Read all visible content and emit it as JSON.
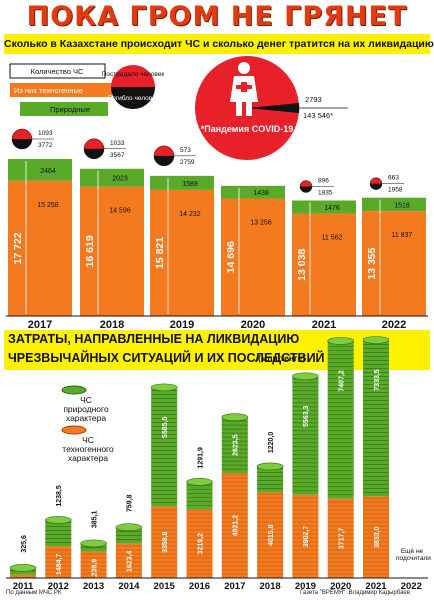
{
  "header": {
    "title": "ПОКА ГРОМ НЕ ГРЯНЕТ",
    "subtitle": "Сколько в Казахстане происходит ЧС и сколько денег тратится на их ликвидацию"
  },
  "legend_top": {
    "total": "Количество ЧС",
    "technogenic": "Из них техногенные",
    "natural": "Природные",
    "victims": "Пострадало человек",
    "deaths": "Погибло человек"
  },
  "covid": {
    "label": "*Пандемия COVID-19",
    "deaths": "2793",
    "victims": "143 546*"
  },
  "section2": {
    "title_line1": "ЗАТРАТЫ, НАПРАВЛЕННЫЕ НА ЛИКВИДАЦИЮ",
    "title_line2": "ЧРЕЗВЫЧАЙНЫХ СИТУАЦИЙ И ИХ ПОСЛЕДСТВИЙ",
    "unit": "(млн тенге)",
    "legend_natural": "ЧС природного характера",
    "legend_technogenic": "ЧС техногенного характера",
    "note_2022": "Ещё не подсчитали"
  },
  "credits": {
    "source": "По данным МЧС РК",
    "author": "Газета \"ВРЕМЯ\". Владимир Кадырбаев"
  },
  "colors": {
    "orange": "#f47a20",
    "green": "#5aaa2a",
    "red": "#e8202a",
    "black": "#111111",
    "yellow": "#fff200"
  },
  "chart_data": [
    {
      "type": "bar",
      "categories": [
        "2017",
        "2018",
        "2019",
        "2020",
        "2021",
        "2022"
      ],
      "series": [
        {
          "name": "Из них техногенные",
          "values": [
            15258,
            14596,
            14232,
            13258,
            11562,
            11837
          ]
        },
        {
          "name": "Природные",
          "values": [
            2464,
            2023,
            1589,
            1438,
            1476,
            1518
          ]
        }
      ],
      "totals": [
        17722,
        16619,
        15821,
        14696,
        13038,
        13355
      ],
      "totals_labels": [
        "17 722",
        "16 619",
        "15 821",
        "14 696",
        "13 038",
        "13 355"
      ],
      "tech_labels": [
        "15 258",
        "14 596",
        "14 232",
        "13 258",
        "11 562",
        "11 837"
      ],
      "natural_labels": [
        "2464",
        "2023",
        "1589",
        "1438",
        "1476",
        "1518"
      ],
      "victims": [
        "3772",
        "3567",
        "2759",
        "",
        "1835",
        "1958"
      ],
      "deaths": [
        "1093",
        "1033",
        "573",
        "",
        "896",
        "663"
      ]
    },
    {
      "type": "bar",
      "categories": [
        "2011",
        "2012",
        "2013",
        "2014",
        "2015",
        "2016",
        "2017",
        "2018",
        "2019",
        "2020",
        "2021",
        "2022"
      ],
      "series": [
        {
          "name": "ЧС техногенного характера",
          "values": [
            148.1,
            1484.7,
            1239.9,
            1623.4,
            3358.8,
            3219.2,
            4921.2,
            4015.8,
            3902.7,
            3717.7,
            3833.0,
            null
          ]
        },
        {
          "name": "ЧС природного характера",
          "values": [
            325.6,
            1238.5,
            385.1,
            759.8,
            5585.5,
            1291.9,
            2623.5,
            1220.0,
            5563.3,
            7407.2,
            7333.5,
            null
          ]
        }
      ],
      "technogenic_labels": [
        "148,1",
        "1484,7",
        "1239,9",
        "1623,4",
        "3358,8",
        "3219,2",
        "4921,2",
        "4015,8",
        "3902,7",
        "3717,7",
        "3833,0",
        ""
      ],
      "natural_labels": [
        "325,6",
        "1238,5",
        "385,1",
        "759,8",
        "5585,5",
        "1291,9",
        "2623,5",
        "1220,0",
        "5563,3",
        "7407,2",
        "7333,5",
        ""
      ]
    }
  ]
}
